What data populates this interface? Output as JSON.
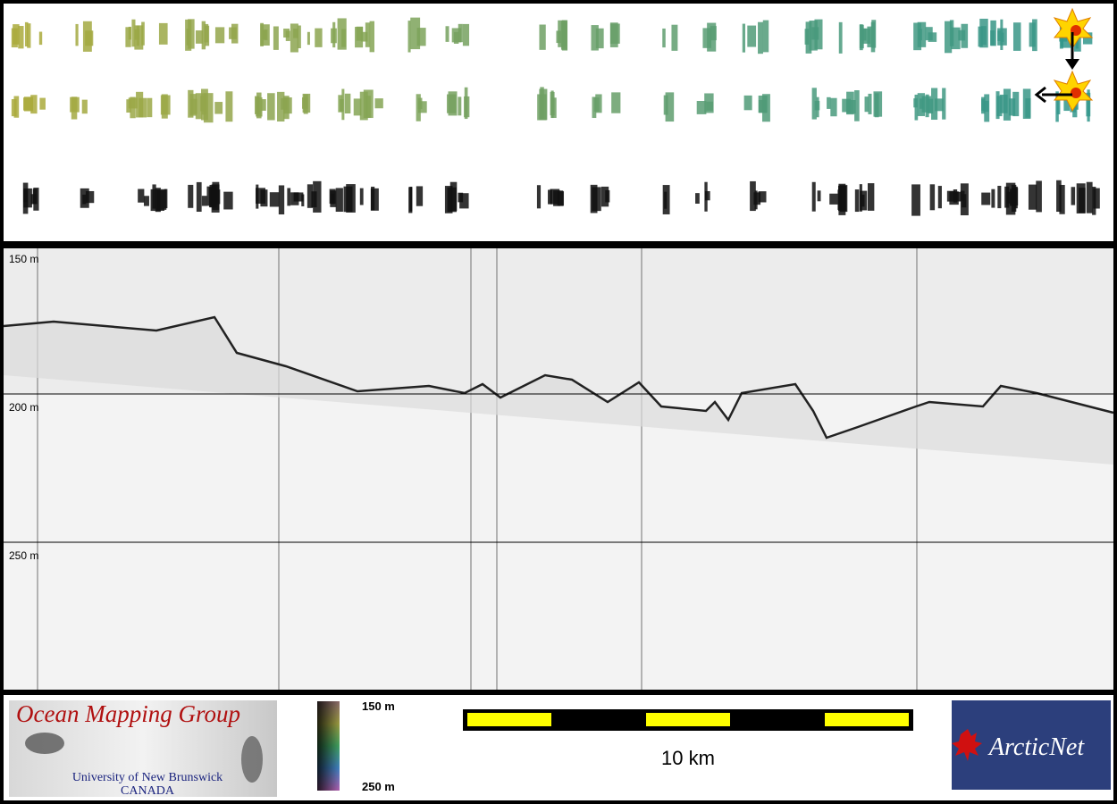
{
  "profile": {
    "depth_labels": [
      "150 m",
      "200 m",
      "250 m"
    ]
  },
  "logo": {
    "title": "Ocean Mapping Group",
    "university": "University of New Brunswick",
    "country": "CANADA"
  },
  "colorbar": {
    "top_label": "150 m",
    "bottom_label": "250 m"
  },
  "scale_bar": {
    "label": "10 km"
  },
  "partner_logo": {
    "name": "ArcticNet"
  }
}
